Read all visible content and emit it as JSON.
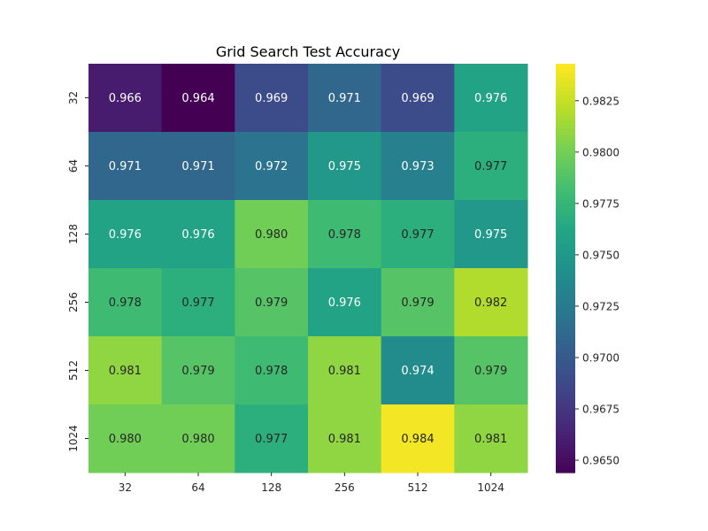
{
  "chart_data": {
    "type": "heatmap",
    "title": "Grid Search Test Accuracy",
    "xlabel": "",
    "ylabel": "",
    "x_categories": [
      "32",
      "64",
      "128",
      "256",
      "512",
      "1024"
    ],
    "y_categories": [
      "32",
      "64",
      "128",
      "256",
      "512",
      "1024"
    ],
    "values": [
      [
        0.966,
        0.964,
        0.969,
        0.971,
        0.969,
        0.976
      ],
      [
        0.971,
        0.971,
        0.972,
        0.975,
        0.973,
        0.977
      ],
      [
        0.976,
        0.976,
        0.98,
        0.978,
        0.977,
        0.975
      ],
      [
        0.978,
        0.977,
        0.979,
        0.976,
        0.979,
        0.982
      ],
      [
        0.981,
        0.979,
        0.978,
        0.981,
        0.974,
        0.979
      ],
      [
        0.98,
        0.98,
        0.977,
        0.981,
        0.984,
        0.981
      ]
    ],
    "colormap": "viridis",
    "colorbar": {
      "min": 0.9644,
      "max": 0.9843,
      "ticks": [
        0.965,
        0.9675,
        0.97,
        0.9725,
        0.975,
        0.9775,
        0.98,
        0.9825
      ],
      "tick_labels": [
        "0.9650",
        "0.9675",
        "0.9700",
        "0.9725",
        "0.9750",
        "0.9775",
        "0.9800",
        "0.9825"
      ]
    },
    "annotations": true
  }
}
